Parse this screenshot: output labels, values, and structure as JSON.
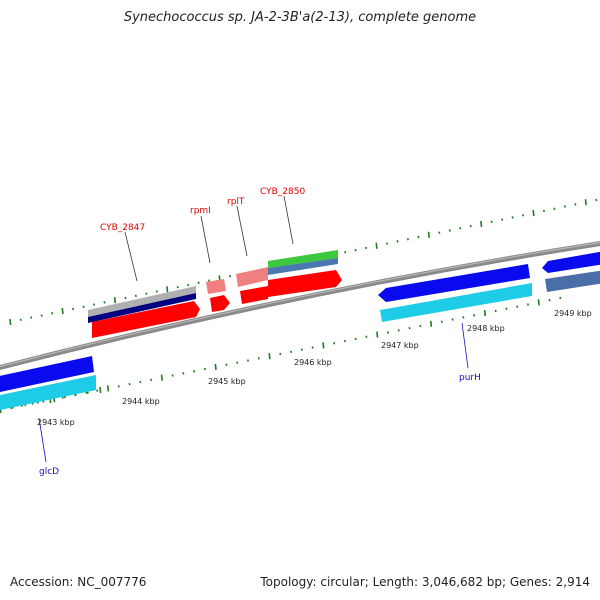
{
  "title": "Synechococcus sp. JA-2-3B'a(2-13), complete genome",
  "footer": {
    "accession": "Accession: NC_007776",
    "summary": "Topology: circular; Length: 3,046,682 bp; Genes: 2,914"
  },
  "scale_labels": [
    "2943 kbp",
    "2944 kbp",
    "2945 kbp",
    "2946 kbp",
    "2947 kbp",
    "2948 kbp",
    "2949 kbp"
  ],
  "gene_labels": {
    "cyb2847": "CYB_2847",
    "rpmi": "rpmI",
    "rplt": "rplT",
    "cyb2850": "CYB_2850",
    "purh": "purH",
    "glcd": "glcD"
  },
  "colors": {
    "backbone": "#808080",
    "tick": "#1f7a1f",
    "forward_cds": "#ff0000",
    "forward_rna": "#f08080",
    "gray_feature": "#b0b0b0",
    "navy_feature": "#000080",
    "green_feature": "#3cc83c",
    "steel_feature": "#4a78b0",
    "reverse_cds": "#0a0aee",
    "reverse_light": "#1ecce8",
    "reverse_steel": "#4a6fa8",
    "label_red": "#e00000",
    "label_blue": "#1010c0"
  }
}
